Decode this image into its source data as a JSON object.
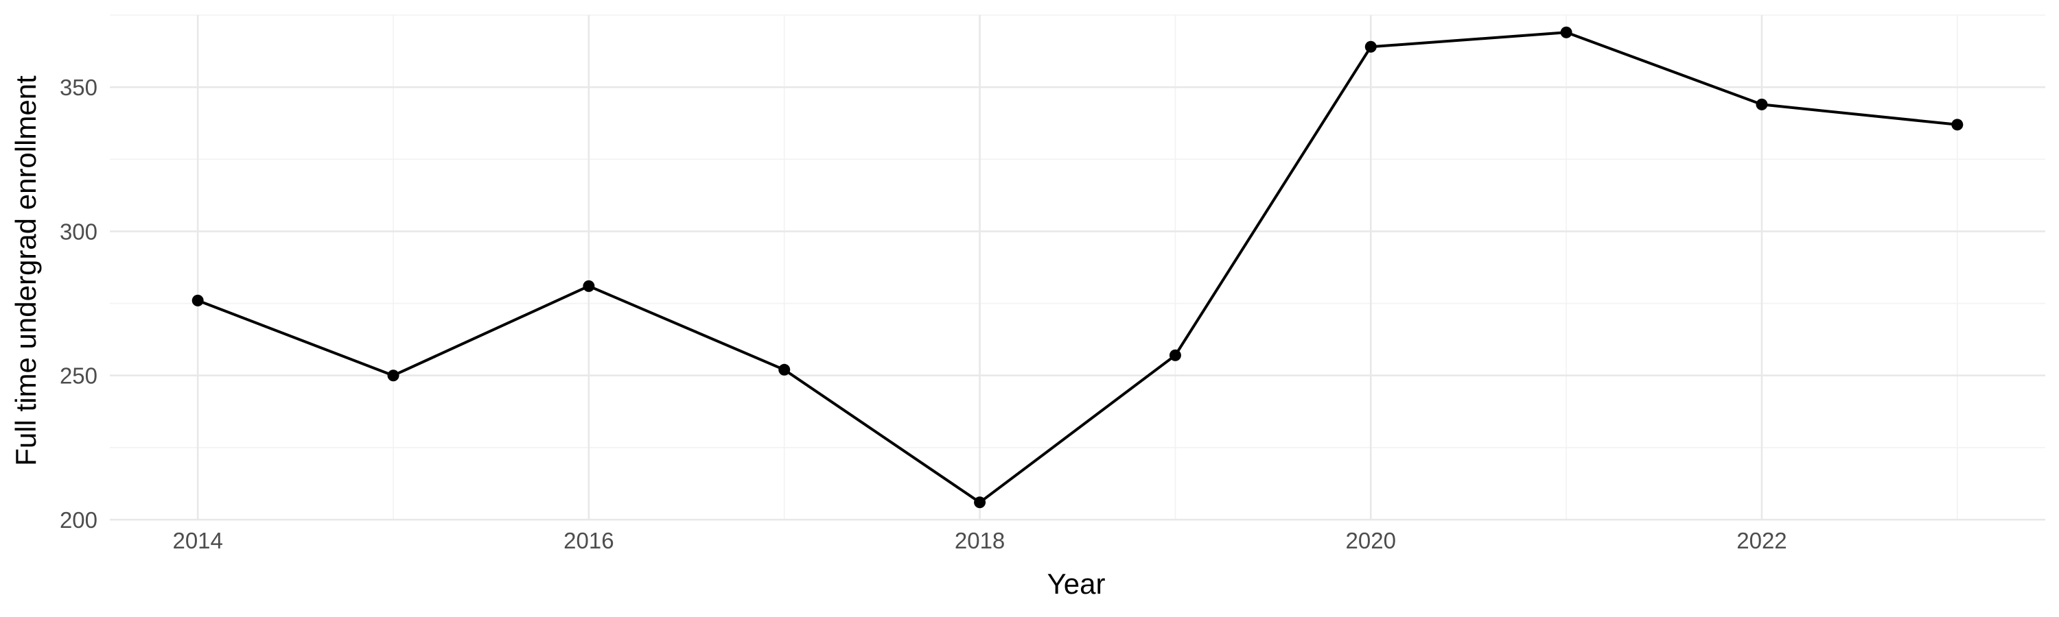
{
  "chart_data": {
    "type": "line",
    "title": "",
    "xlabel": "Year",
    "ylabel": "Full time undergrad enrollment",
    "x": [
      2014,
      2015,
      2016,
      2017,
      2018,
      2019,
      2020,
      2021,
      2022,
      2023
    ],
    "series": [
      {
        "values": [
          276,
          250,
          281,
          252,
          206,
          257,
          364,
          369,
          344,
          337
        ]
      }
    ],
    "xlim": [
      2013.55,
      2023.45
    ],
    "ylim": [
      200,
      375
    ],
    "x_ticks": [
      "2014",
      "2016",
      "2018",
      "2020",
      "2022"
    ],
    "x_tick_values": [
      2014,
      2016,
      2018,
      2020,
      2022
    ],
    "y_ticks": [
      "200",
      "250",
      "300",
      "350"
    ],
    "y_tick_values": [
      200,
      250,
      300,
      350
    ],
    "grid": true,
    "colors": {
      "line": "#000000",
      "points": "#000000",
      "grid": "#ebebeb"
    }
  }
}
